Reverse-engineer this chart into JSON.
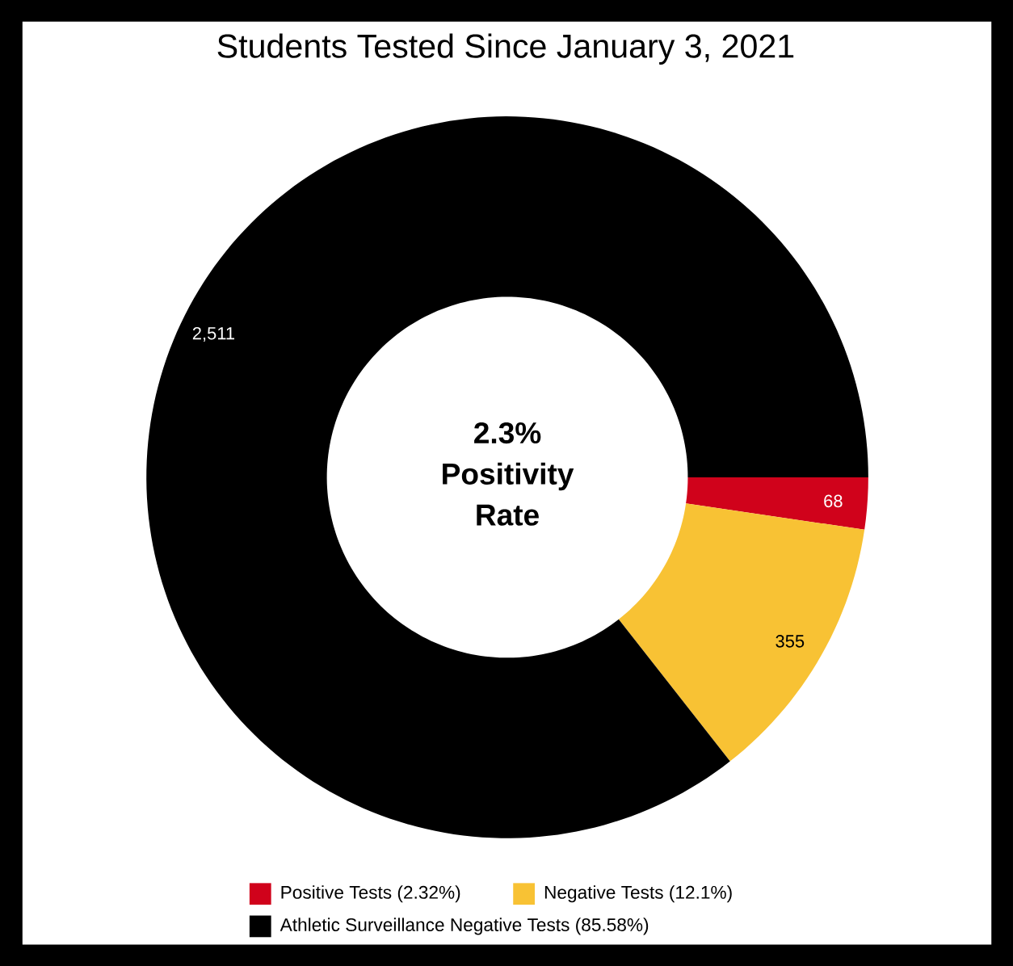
{
  "chart_data": {
    "type": "donut",
    "title": "Students Tested Since January 3, 2021",
    "categories": [
      "Positive Tests (2.32%)",
      "Negative Tests (12.1%)",
      "Athletic Surveillance Negative Tests (85.58%)"
    ],
    "values": [
      68,
      355,
      2511
    ],
    "colors": [
      "#d0021b",
      "#f8c234",
      "#000000"
    ],
    "value_labels": [
      "68",
      "355",
      "2,511"
    ],
    "annotations": [
      "2.3% Positivity Rate"
    ],
    "legend": "bottom"
  }
}
